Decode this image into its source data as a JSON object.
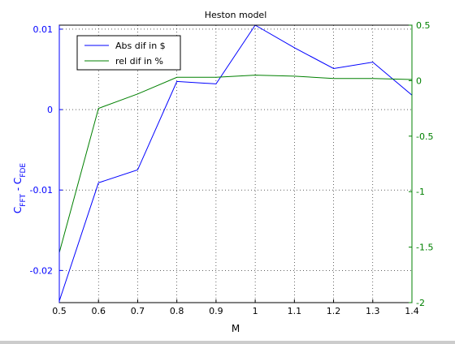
{
  "chart_data": {
    "type": "line",
    "title": "Heston model",
    "xlabel": "M",
    "ylabel_left": "C_FFT - C_FDE",
    "ylabel_left_parts": {
      "base1": "C",
      "sub1": "FFT",
      "sep": " - ",
      "base2": "C",
      "sub2": "FDE"
    },
    "ylabel_right": "",
    "x": [
      0.5,
      0.6,
      0.7,
      0.8,
      0.9,
      1.0,
      1.1,
      1.2,
      1.3,
      1.4
    ],
    "xlim": [
      0.5,
      1.4
    ],
    "ylim_left": [
      -0.024,
      0.0105
    ],
    "ylim_right": [
      -2,
      0.5
    ],
    "xticks": [
      "0.5",
      "0.6",
      "0.7",
      "0.8",
      "0.9",
      "1",
      "1.1",
      "1.2",
      "1.3",
      "1.4"
    ],
    "xtick_values": [
      0.5,
      0.6,
      0.7,
      0.8,
      0.9,
      1.0,
      1.1,
      1.2,
      1.3,
      1.4
    ],
    "yticks_left": [
      "-0.02",
      "-0.01",
      "0",
      "0.01"
    ],
    "ytick_values_left": [
      -0.02,
      -0.01,
      0,
      0.01
    ],
    "yticks_right": [
      "-2",
      "-1.5",
      "-1",
      "-0.5",
      "0",
      "0.5"
    ],
    "ytick_values_right": [
      -2,
      -1.5,
      -1,
      -0.5,
      0,
      0.5
    ],
    "grid": true,
    "legend_position": "top-left",
    "series": [
      {
        "name": "Abs dif in $",
        "axis": "left",
        "color": "#0000ff",
        "values": [
          -0.0238,
          -0.0091,
          -0.0075,
          0.0035,
          0.0032,
          0.0105,
          0.0077,
          0.0051,
          0.0059,
          0.0018
        ]
      },
      {
        "name": "rel dif in %",
        "axis": "right",
        "color": "#008000",
        "values": [
          -1.55,
          -0.25,
          -0.12,
          0.03,
          0.03,
          0.05,
          0.04,
          0.02,
          0.02,
          0.01
        ]
      }
    ],
    "colors": {
      "left_axis": "#0000ff",
      "right_axis": "#008000",
      "frame": "#000000",
      "grid": "#000000"
    }
  }
}
